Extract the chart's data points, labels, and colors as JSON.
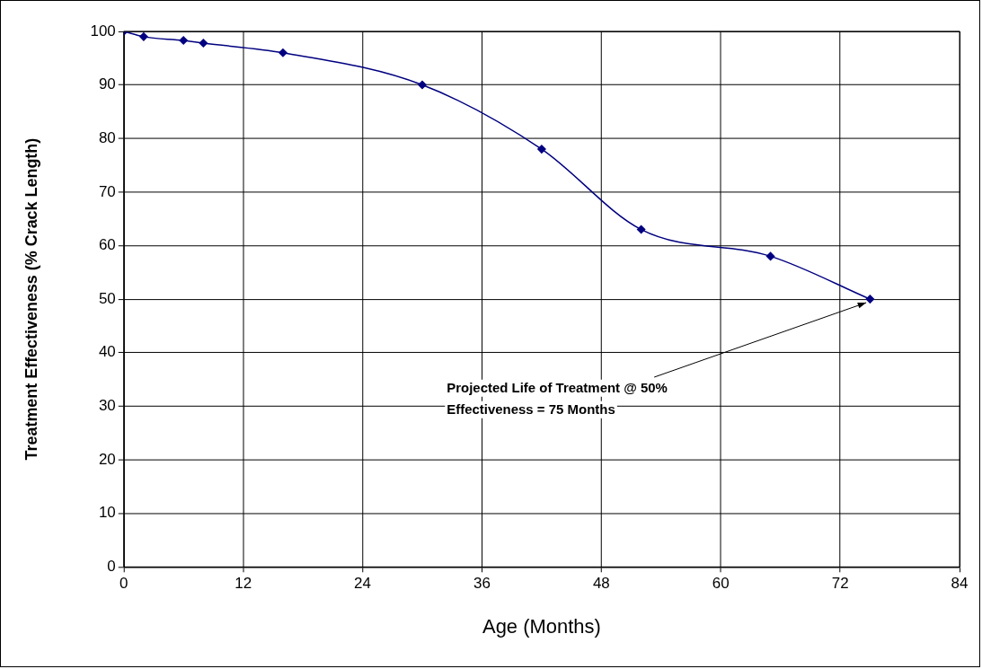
{
  "chart_data": {
    "type": "line",
    "xlabel": "Age (Months)",
    "ylabel": "Treatment Effectiveness (% Crack Length)",
    "x": [
      0,
      2,
      6,
      8,
      16,
      30,
      42,
      52,
      65,
      75
    ],
    "series": [
      {
        "color": "#000080",
        "values": [
          100,
          99,
          98.3,
          97.8,
          96,
          90,
          78,
          63,
          58,
          50
        ]
      }
    ],
    "xlim": [
      0,
      84
    ],
    "xticks": [
      0,
      12,
      24,
      36,
      48,
      60,
      72,
      84
    ],
    "ylim": [
      0,
      100
    ],
    "yticks": [
      0,
      10,
      20,
      30,
      40,
      50,
      60,
      70,
      80,
      90,
      100
    ],
    "grid": true,
    "legend": false,
    "marker": "diamond",
    "line_style": "solid",
    "annotations": [
      {
        "text": "Projected Life of Treatment @ 50% Effectiveness = 75 Months",
        "x": 75,
        "y": 50
      }
    ]
  }
}
